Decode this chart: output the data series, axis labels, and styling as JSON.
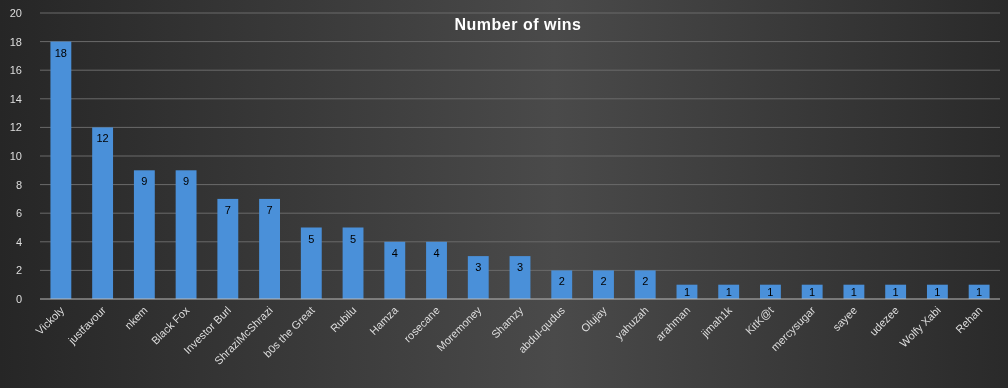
{
  "chart_data": {
    "type": "bar",
    "title": "Number of wins",
    "categories": [
      "Vickoly",
      "justfavour",
      "nkem",
      "Black Fox",
      "Investor Burl",
      "ShraziMcShrazi",
      "b0s the Great",
      "Rubilu",
      "Hamza",
      "rosecane",
      "Moremoney",
      "Shamzy",
      "abdul-qudus",
      "Olujay",
      "yahuzah",
      "arahman",
      "jimah1k",
      "KitK@t",
      "mercysugar",
      "sayee",
      "udezee",
      "Wolfy Xabi",
      "Rehan"
    ],
    "values": [
      18,
      12,
      9,
      9,
      7,
      7,
      5,
      5,
      4,
      4,
      3,
      3,
      2,
      2,
      2,
      1,
      1,
      1,
      1,
      1,
      1,
      1,
      1
    ],
    "color": "#4a90d9",
    "ylim": [
      0,
      20
    ],
    "yticks": [
      0,
      2,
      4,
      6,
      8,
      10,
      12,
      14,
      16,
      18,
      20
    ],
    "grid": "y",
    "data_labels": true
  }
}
